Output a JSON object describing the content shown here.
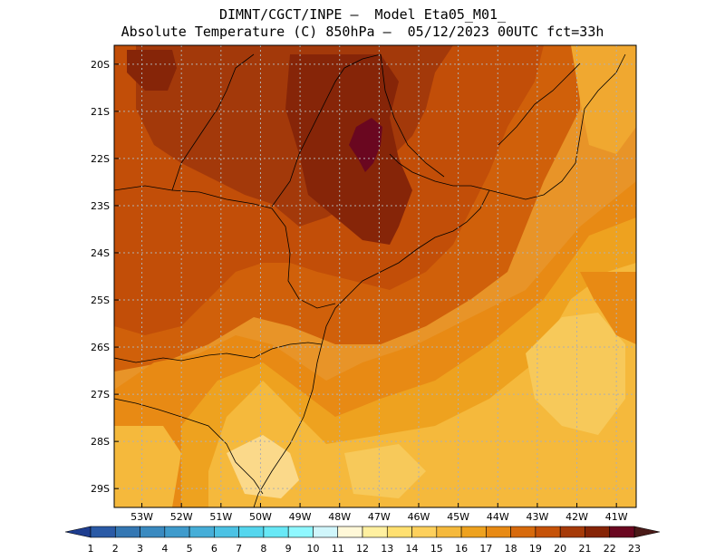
{
  "title_line1": "DIMNT/CGCT/INPE –  Model Eta05_M01_",
  "title_line2": "Absolute Temperature (C) 850hPa –  05/12/2023 00UTC fct=33h",
  "lon_labels": [
    "53W",
    "52W",
    "51W",
    "50W",
    "49W",
    "48W",
    "47W",
    "46W",
    "45W",
    "44W",
    "43W",
    "42W",
    "41W"
  ],
  "lat_labels": [
    "20S",
    "21S",
    "22S",
    "23S",
    "24S",
    "25S",
    "26S",
    "27S",
    "28S",
    "29S"
  ],
  "colorbar": {
    "labels": [
      "1",
      "2",
      "3",
      "4",
      "5",
      "6",
      "7",
      "8",
      "9",
      "10",
      "11",
      "12",
      "13",
      "14",
      "15",
      "16",
      "17",
      "18",
      "19",
      "20",
      "21",
      "22",
      "23"
    ],
    "colors": [
      "#1e3d8f",
      "#2a5aa6",
      "#3477b3",
      "#3a8ac0",
      "#3f9bcc",
      "#46aed8",
      "#4cc2e4",
      "#55d6ee",
      "#68e8f6",
      "#8ff8ff",
      "#d0f6fb",
      "#fff8d8",
      "#fff0a0",
      "#ffe070",
      "#fdd05c",
      "#f5b93c",
      "#eea21f",
      "#e88a14",
      "#d76a0c",
      "#c65208",
      "#a63a08",
      "#862406",
      "#6a0720"
    ],
    "below_color": "#1e3d8f",
    "above_color": "#4a1a18"
  },
  "map": {
    "extent": {
      "lon_min": -53.7,
      "lon_max": -40.5,
      "lat_min": -29.4,
      "lat_max": -19.6
    },
    "background_color": "#e89428"
  }
}
